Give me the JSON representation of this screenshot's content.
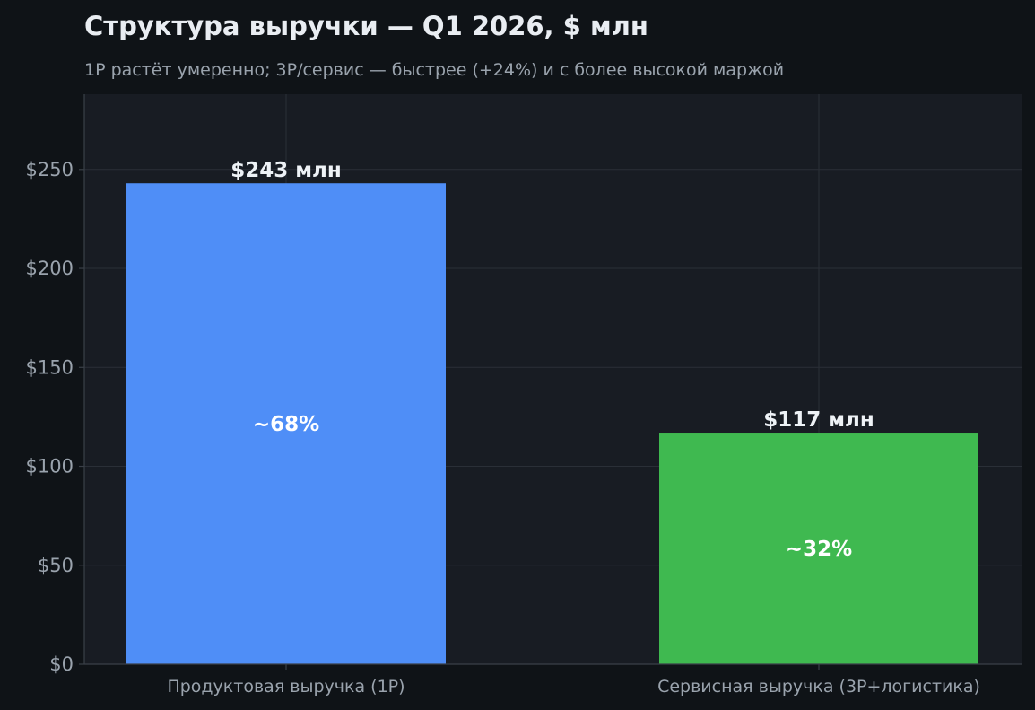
{
  "chart_data": {
    "type": "bar",
    "title": "Структура выручки — Q1 2026, $ млн",
    "subtitle": "1P растёт умеренно; 3P/сервис — быстрее (+24%) и с более высокой маржой",
    "xlabel": "",
    "ylabel": "",
    "categories": [
      "Продуктовая выручка (1P)",
      "Сервисная выручка (3P+логистика)"
    ],
    "values": [
      243,
      117
    ],
    "value_labels": [
      "$243 млн",
      "$117 млн"
    ],
    "share_labels": [
      "~68%",
      "~32%"
    ],
    "bar_colors": [
      "#4f8ef7",
      "#3fb950"
    ],
    "ylim": [
      0,
      288
    ],
    "yticks": [
      0,
      50,
      100,
      150,
      200,
      250
    ],
    "ytick_labels": [
      "$0",
      "$50",
      "$100",
      "$150",
      "$200",
      "$250"
    ],
    "grid": true,
    "legend": "none"
  },
  "colors": {
    "page_background": "#0f1317",
    "plot_background": "#181c23",
    "grid": "#2a2f37",
    "axis": "#3a4048"
  }
}
